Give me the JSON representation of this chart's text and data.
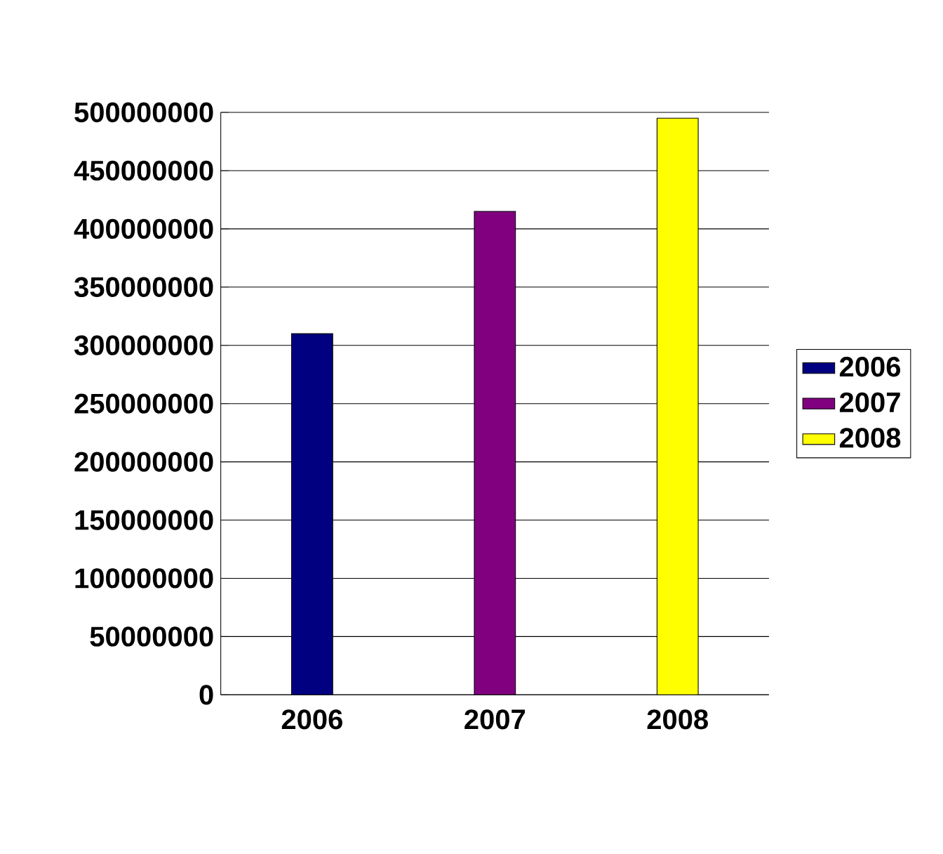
{
  "chart_data": {
    "type": "bar",
    "categories": [
      "2006",
      "2007",
      "2008"
    ],
    "series": [
      {
        "name": "2006",
        "color": "#000080",
        "values": [
          310000000,
          null,
          null
        ]
      },
      {
        "name": "2007",
        "color": "#800080",
        "values": [
          null,
          415000000,
          null
        ]
      },
      {
        "name": "2008",
        "color": "#ffff00",
        "values": [
          null,
          null,
          495000000
        ]
      }
    ],
    "ylim": [
      0,
      500000000
    ],
    "yticks": [
      0,
      50000000,
      100000000,
      150000000,
      200000000,
      250000000,
      300000000,
      350000000,
      400000000,
      450000000,
      500000000
    ],
    "grid": "y",
    "legend": "right"
  }
}
